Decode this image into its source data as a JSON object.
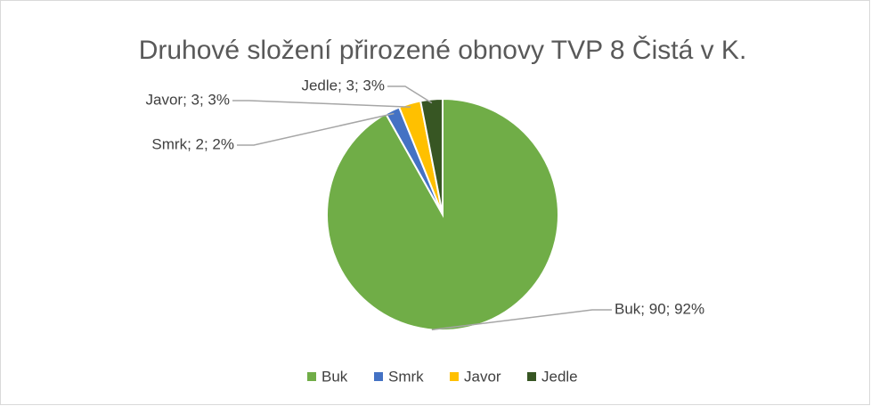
{
  "chart_data": {
    "type": "pie",
    "title": "Druhové složení přirozené obnovy TVP 8 Čistá v K.",
    "categories": [
      "Buk",
      "Smrk",
      "Javor",
      "Jedle"
    ],
    "values": [
      90,
      2,
      3,
      3
    ],
    "value_labels": [
      "Buk; 90; 92%",
      "Smrk; 2; 2%",
      "Javor; 3; 3%",
      "Jedle; 3; 3%"
    ],
    "colors": [
      "#70ad47",
      "#4472c4",
      "#ffc000",
      "#375623"
    ],
    "legend": "bottom"
  }
}
